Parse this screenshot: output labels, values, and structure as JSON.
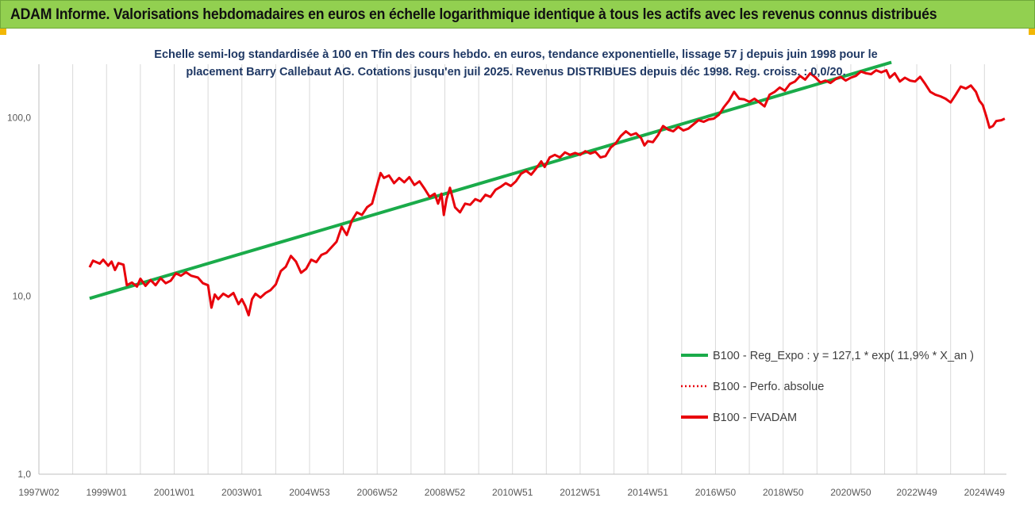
{
  "banner": {
    "title": "ADAM Informe. Valorisations hebdomadaires en euros en échelle logarithmique identique à tous les actifs avec les revenus connus distribués"
  },
  "colors": {
    "banner_bg": "#92d050",
    "corner_accent": "#f2b705",
    "trend": "#1aab4a",
    "fvadam": "#e8000b",
    "perfo": "#e8000b",
    "axis_text": "#595959",
    "title_text": "#1f3864"
  },
  "chart_data": {
    "type": "line",
    "title_lines": [
      "Echelle semi-log standardisée à 100 en Tfin des cours hebdo. en euros, tendance exponentielle, lissage 57 j depuis juin 1998 pour le",
      "placement Barry Callebaut AG. Cotations jusqu'en juil 2025. Revenus DISTRIBUES depuis déc 1998. Reg. croiss. : 0,0/20."
    ],
    "y_scale": "log",
    "ylim": [
      1,
      200
    ],
    "y_ticks": [
      {
        "value": 1,
        "label": "1,0"
      },
      {
        "value": 10,
        "label": "10,0"
      },
      {
        "value": 100,
        "label": "100,0"
      }
    ],
    "xlim": [
      1997.0,
      2025.6
    ],
    "x_ticks": [
      {
        "value": 1997.0,
        "label": "1997W02"
      },
      {
        "value": 1999.0,
        "label": "1999W01"
      },
      {
        "value": 2001.0,
        "label": "2001W01"
      },
      {
        "value": 2003.0,
        "label": "2003W01"
      },
      {
        "value": 2005.0,
        "label": "2004W53"
      },
      {
        "value": 2007.0,
        "label": "2006W52"
      },
      {
        "value": 2009.0,
        "label": "2008W52"
      },
      {
        "value": 2011.0,
        "label": "2010W51"
      },
      {
        "value": 2013.0,
        "label": "2012W51"
      },
      {
        "value": 2015.0,
        "label": "2014W51"
      },
      {
        "value": 2017.0,
        "label": "2016W50"
      },
      {
        "value": 2019.0,
        "label": "2018W50"
      },
      {
        "value": 2021.0,
        "label": "2020W50"
      },
      {
        "value": 2022.95,
        "label": "2022W49"
      },
      {
        "value": 2024.95,
        "label": "2024W49"
      }
    ],
    "legend_position": "bottom-right",
    "grid": "vertical",
    "series": [
      {
        "name": "B100 - Reg_Expo : y = 127,1 * exp( 11,9% *  X_an )",
        "style": "solid",
        "color": "#1aab4a",
        "points": [
          [
            1998.5,
            9.7
          ],
          [
            2022.2,
            205
          ]
        ]
      },
      {
        "name": "B100 - Perfo. absolue",
        "style": "dotted",
        "color": "#e8000b",
        "points": []
      },
      {
        "name": "B100 - FVADAM",
        "style": "solid",
        "color": "#e8000b",
        "points": [
          [
            1998.5,
            14.5
          ],
          [
            1998.6,
            15.8
          ],
          [
            1998.8,
            15.2
          ],
          [
            1998.9,
            16.0
          ],
          [
            1999.05,
            14.8
          ],
          [
            1999.15,
            15.6
          ],
          [
            1999.25,
            14.0
          ],
          [
            1999.35,
            15.3
          ],
          [
            1999.5,
            15.0
          ],
          [
            1999.6,
            11.5
          ],
          [
            1999.75,
            11.9
          ],
          [
            1999.9,
            11.3
          ],
          [
            2000.0,
            12.5
          ],
          [
            2000.15,
            11.4
          ],
          [
            2000.3,
            12.3
          ],
          [
            2000.45,
            11.5
          ],
          [
            2000.6,
            12.6
          ],
          [
            2000.75,
            11.8
          ],
          [
            2000.9,
            12.2
          ],
          [
            2001.05,
            13.4
          ],
          [
            2001.2,
            13.0
          ],
          [
            2001.35,
            13.6
          ],
          [
            2001.5,
            13.0
          ],
          [
            2001.7,
            12.7
          ],
          [
            2001.85,
            11.8
          ],
          [
            2002.0,
            11.5
          ],
          [
            2002.1,
            8.6
          ],
          [
            2002.2,
            10.2
          ],
          [
            2002.3,
            9.6
          ],
          [
            2002.45,
            10.3
          ],
          [
            2002.6,
            9.9
          ],
          [
            2002.75,
            10.4
          ],
          [
            2002.9,
            9.0
          ],
          [
            2003.0,
            9.6
          ],
          [
            2003.1,
            8.8
          ],
          [
            2003.2,
            7.8
          ],
          [
            2003.3,
            9.6
          ],
          [
            2003.4,
            10.3
          ],
          [
            2003.55,
            9.8
          ],
          [
            2003.7,
            10.4
          ],
          [
            2003.85,
            10.8
          ],
          [
            2004.0,
            11.6
          ],
          [
            2004.15,
            13.8
          ],
          [
            2004.3,
            14.6
          ],
          [
            2004.45,
            16.8
          ],
          [
            2004.6,
            15.6
          ],
          [
            2004.75,
            13.5
          ],
          [
            2004.9,
            14.2
          ],
          [
            2005.05,
            16.0
          ],
          [
            2005.2,
            15.5
          ],
          [
            2005.35,
            17.0
          ],
          [
            2005.5,
            17.5
          ],
          [
            2005.65,
            18.8
          ],
          [
            2005.8,
            20.2
          ],
          [
            2005.95,
            24.5
          ],
          [
            2006.1,
            22.0
          ],
          [
            2006.25,
            26.5
          ],
          [
            2006.4,
            29.5
          ],
          [
            2006.55,
            28.5
          ],
          [
            2006.7,
            31.5
          ],
          [
            2006.85,
            33.0
          ],
          [
            2007.0,
            42.0
          ],
          [
            2007.1,
            49.0
          ],
          [
            2007.2,
            46.0
          ],
          [
            2007.35,
            47.5
          ],
          [
            2007.5,
            43.0
          ],
          [
            2007.65,
            46.0
          ],
          [
            2007.8,
            43.5
          ],
          [
            2007.95,
            46.5
          ],
          [
            2008.1,
            42.0
          ],
          [
            2008.25,
            44.0
          ],
          [
            2008.4,
            40.0
          ],
          [
            2008.55,
            36.0
          ],
          [
            2008.7,
            37.5
          ],
          [
            2008.8,
            33.0
          ],
          [
            2008.9,
            37.5
          ],
          [
            2008.97,
            28.5
          ],
          [
            2009.05,
            35.0
          ],
          [
            2009.15,
            40.5
          ],
          [
            2009.3,
            31.5
          ],
          [
            2009.45,
            29.5
          ],
          [
            2009.6,
            33.0
          ],
          [
            2009.75,
            32.5
          ],
          [
            2009.9,
            35.0
          ],
          [
            2010.05,
            34.0
          ],
          [
            2010.2,
            37.0
          ],
          [
            2010.35,
            36.0
          ],
          [
            2010.5,
            39.5
          ],
          [
            2010.65,
            41.0
          ],
          [
            2010.8,
            43.0
          ],
          [
            2010.95,
            41.5
          ],
          [
            2011.1,
            44.0
          ],
          [
            2011.25,
            48.5
          ],
          [
            2011.4,
            50.5
          ],
          [
            2011.55,
            48.0
          ],
          [
            2011.7,
            52.0
          ],
          [
            2011.85,
            57.0
          ],
          [
            2011.95,
            53.0
          ],
          [
            2012.1,
            60.0
          ],
          [
            2012.25,
            62.0
          ],
          [
            2012.4,
            60.0
          ],
          [
            2012.55,
            64.0
          ],
          [
            2012.7,
            62.0
          ],
          [
            2012.85,
            63.5
          ],
          [
            2013.0,
            62.0
          ],
          [
            2013.15,
            65.0
          ],
          [
            2013.3,
            63.0
          ],
          [
            2013.45,
            64.5
          ],
          [
            2013.6,
            60.0
          ],
          [
            2013.75,
            61.0
          ],
          [
            2013.9,
            68.0
          ],
          [
            2014.05,
            72.0
          ],
          [
            2014.2,
            79.0
          ],
          [
            2014.35,
            84.0
          ],
          [
            2014.5,
            80.0
          ],
          [
            2014.65,
            82.0
          ],
          [
            2014.8,
            77.0
          ],
          [
            2014.9,
            70.0
          ],
          [
            2015.0,
            74.0
          ],
          [
            2015.15,
            73.0
          ],
          [
            2015.3,
            80.0
          ],
          [
            2015.45,
            90.0
          ],
          [
            2015.6,
            86.0
          ],
          [
            2015.75,
            84.0
          ],
          [
            2015.9,
            89.0
          ],
          [
            2016.05,
            85.0
          ],
          [
            2016.2,
            87.0
          ],
          [
            2016.35,
            92.0
          ],
          [
            2016.5,
            97.0
          ],
          [
            2016.65,
            95.0
          ],
          [
            2016.8,
            98.0
          ],
          [
            2016.95,
            99.0
          ],
          [
            2017.1,
            104.0
          ],
          [
            2017.25,
            115.0
          ],
          [
            2017.4,
            125.0
          ],
          [
            2017.55,
            140.0
          ],
          [
            2017.7,
            128.0
          ],
          [
            2017.85,
            127.0
          ],
          [
            2018.0,
            123.0
          ],
          [
            2018.15,
            128.0
          ],
          [
            2018.3,
            122.0
          ],
          [
            2018.45,
            116.0
          ],
          [
            2018.6,
            135.0
          ],
          [
            2018.75,
            140.0
          ],
          [
            2018.9,
            148.0
          ],
          [
            2019.05,
            142.0
          ],
          [
            2019.2,
            155.0
          ],
          [
            2019.35,
            160.0
          ],
          [
            2019.5,
            172.0
          ],
          [
            2019.65,
            164.0
          ],
          [
            2019.8,
            178.0
          ],
          [
            2019.95,
            169.0
          ],
          [
            2020.1,
            158.0
          ],
          [
            2020.25,
            162.0
          ],
          [
            2020.4,
            157.0
          ],
          [
            2020.55,
            165.0
          ],
          [
            2020.7,
            170.0
          ],
          [
            2020.85,
            162.0
          ],
          [
            2021.0,
            168.0
          ],
          [
            2021.15,
            172.0
          ],
          [
            2021.3,
            182.0
          ],
          [
            2021.45,
            178.0
          ],
          [
            2021.6,
            176.0
          ],
          [
            2021.75,
            185.0
          ],
          [
            2021.9,
            180.0
          ],
          [
            2022.05,
            185.0
          ],
          [
            2022.15,
            168.0
          ],
          [
            2022.3,
            178.0
          ],
          [
            2022.45,
            160.0
          ],
          [
            2022.6,
            168.0
          ],
          [
            2022.75,
            162.0
          ],
          [
            2022.9,
            160.0
          ],
          [
            2023.05,
            170.0
          ],
          [
            2023.2,
            155.0
          ],
          [
            2023.35,
            140.0
          ],
          [
            2023.5,
            135.0
          ],
          [
            2023.65,
            132.0
          ],
          [
            2023.8,
            128.0
          ],
          [
            2023.95,
            122.0
          ],
          [
            2024.1,
            135.0
          ],
          [
            2024.25,
            150.0
          ],
          [
            2024.4,
            146.0
          ],
          [
            2024.55,
            152.0
          ],
          [
            2024.7,
            140.0
          ],
          [
            2024.8,
            125.0
          ],
          [
            2024.9,
            118.0
          ],
          [
            2025.0,
            103.0
          ],
          [
            2025.1,
            88.0
          ],
          [
            2025.2,
            90.0
          ],
          [
            2025.3,
            96.0
          ],
          [
            2025.45,
            97.0
          ],
          [
            2025.55,
            99.0
          ]
        ]
      }
    ]
  }
}
